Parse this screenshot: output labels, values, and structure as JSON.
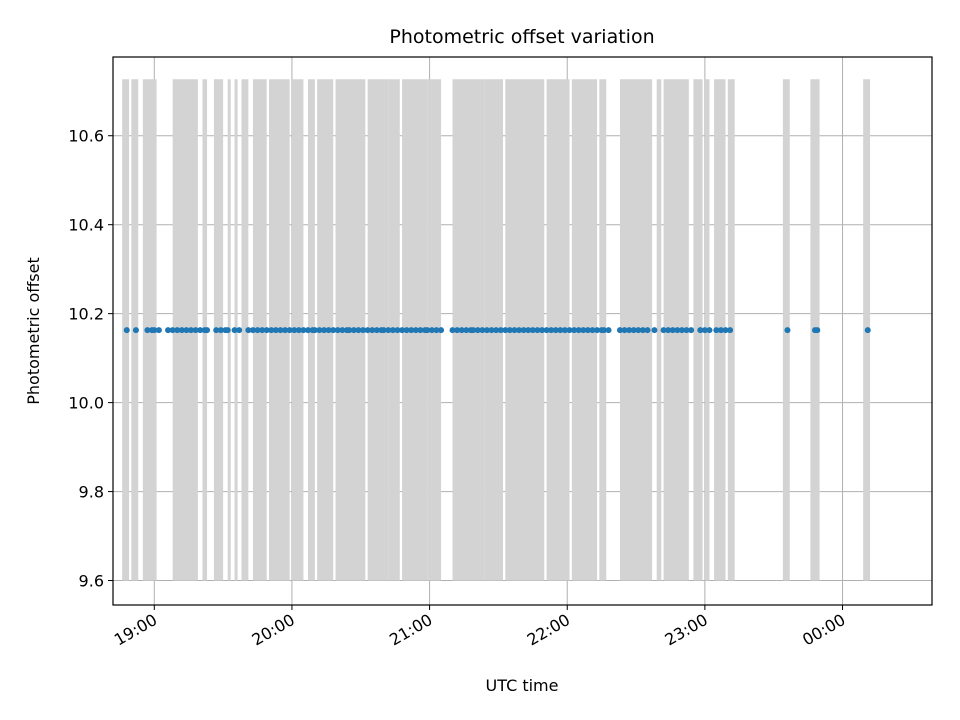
{
  "chart_data": {
    "type": "scatter",
    "title": "Photometric offset variation",
    "xlabel": "UTC time",
    "ylabel": "Photometric offset",
    "x_tick_labels": [
      "19:00",
      "20:00",
      "21:00",
      "22:00",
      "23:00",
      "00:00"
    ],
    "y_tick_labels": [
      "9.6",
      "9.8",
      "10.0",
      "10.2",
      "10.4",
      "10.6"
    ],
    "y_ticks": [
      9.6,
      9.8,
      10.0,
      10.2,
      10.4,
      10.6
    ],
    "ylim": [
      9.545,
      10.777
    ],
    "xlim_hours": [
      18.7,
      24.65
    ],
    "grid": true,
    "point_color": "#1f77b4",
    "band_color": "#d3d3d3",
    "offset_value": 10.163,
    "band_range": [
      9.6,
      10.727
    ],
    "observation_times": [
      "18:48",
      "18:52",
      "18:57",
      "18:59",
      "19:00",
      "19:02",
      "19:06",
      "19:08",
      "19:10",
      "19:12",
      "19:14",
      "19:16",
      "19:18",
      "19:20",
      "19:22",
      "19:23",
      "19:27",
      "19:29",
      "19:31",
      "19:32",
      "19:35",
      "19:37",
      "19:41",
      "19:43",
      "19:45",
      "19:47",
      "19:49",
      "19:51",
      "19:53",
      "19:55",
      "19:57",
      "19:59",
      "20:01",
      "20:03",
      "20:05",
      "20:07",
      "20:09",
      "20:10",
      "20:12",
      "20:14",
      "20:16",
      "20:18",
      "20:20",
      "20:22",
      "20:24",
      "20:25",
      "20:27",
      "20:29",
      "20:31",
      "20:33",
      "20:35",
      "20:37",
      "20:39",
      "20:40",
      "20:42",
      "20:44",
      "20:46",
      "20:48",
      "20:50",
      "20:52",
      "20:54",
      "20:56",
      "20:58",
      "20:59",
      "21:01",
      "21:03",
      "21:05",
      "21:10",
      "21:12",
      "21:14",
      "21:16",
      "21:18",
      "21:19",
      "21:21",
      "21:23",
      "21:25",
      "21:27",
      "21:29",
      "21:31",
      "21:33",
      "21:35",
      "21:37",
      "21:39",
      "21:41",
      "21:43",
      "21:45",
      "21:47",
      "21:49",
      "21:51",
      "21:53",
      "21:55",
      "21:57",
      "21:59",
      "22:01",
      "22:03",
      "22:05",
      "22:07",
      "22:09",
      "22:11",
      "22:13",
      "22:15",
      "22:16",
      "22:18",
      "22:23",
      "22:25",
      "22:27",
      "22:29",
      "22:31",
      "22:33",
      "22:35",
      "22:38",
      "22:42",
      "22:44",
      "22:46",
      "22:48",
      "22:50",
      "22:52",
      "22:54",
      "22:58",
      "23:00",
      "23:02",
      "23:05",
      "23:07",
      "23:09",
      "23:11",
      "23:36",
      "23:48",
      "23:49",
      "00:11"
    ],
    "bands": [
      [
        "18:46",
        "18:49"
      ],
      [
        "18:50",
        "18:53"
      ],
      [
        "18:55",
        "19:01"
      ],
      [
        "19:08",
        "19:19"
      ],
      [
        "19:21",
        "19:23"
      ],
      [
        "19:26",
        "19:30"
      ],
      [
        "19:32",
        "19:33"
      ],
      [
        "19:35",
        "19:36"
      ],
      [
        "19:38",
        "19:41"
      ],
      [
        "19:43",
        "19:49"
      ],
      [
        "19:50",
        "19:59"
      ],
      [
        "20:00",
        "20:05"
      ],
      [
        "20:07",
        "20:10"
      ],
      [
        "20:11",
        "20:18"
      ],
      [
        "20:19",
        "20:32"
      ],
      [
        "20:33",
        "20:42"
      ],
      [
        "20:42",
        "20:47"
      ],
      [
        "20:48",
        "20:53"
      ],
      [
        "20:53",
        "20:59"
      ],
      [
        "20:59",
        "21:05"
      ],
      [
        "21:10",
        "21:24"
      ],
      [
        "21:24",
        "21:32"
      ],
      [
        "21:33",
        "21:37"
      ],
      [
        "21:37",
        "21:50"
      ],
      [
        "21:51",
        "22:01"
      ],
      [
        "22:02",
        "22:11"
      ],
      [
        "22:11",
        "22:13"
      ],
      [
        "22:14",
        "22:17"
      ],
      [
        "22:23",
        "22:37"
      ],
      [
        "22:39",
        "22:41"
      ],
      [
        "22:42",
        "22:53"
      ],
      [
        "22:55",
        "22:59"
      ],
      [
        "23:00",
        "23:02"
      ],
      [
        "23:04",
        "23:09"
      ],
      [
        "23:10",
        "23:13"
      ],
      [
        "23:34",
        "23:37"
      ],
      [
        "23:46",
        "23:50"
      ],
      [
        "00:09",
        "00:12"
      ]
    ]
  }
}
